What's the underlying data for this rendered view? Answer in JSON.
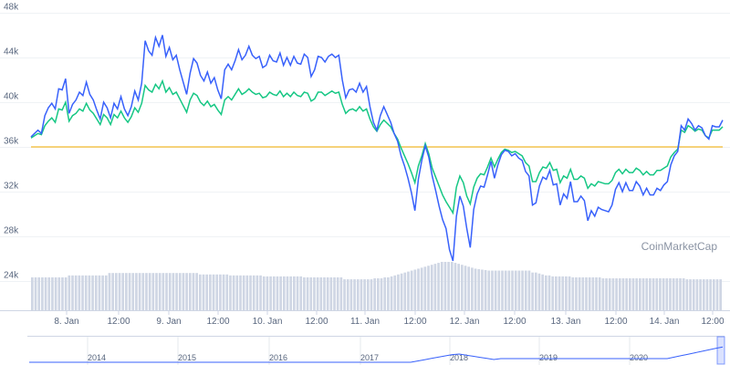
{
  "watermark": "CoinMarketCap",
  "colors": {
    "price": "#3861fb",
    "market_cap": "#16c784",
    "reference": "#f3ba2f",
    "volume": "#cfd6e4",
    "grid": "#eff2f5",
    "navigator": "#3861fb"
  },
  "chart_data": {
    "type": "line",
    "y_ticks": [
      "24k",
      "28k",
      "32k",
      "36k",
      "40k",
      "44k",
      "48k"
    ],
    "y_tick_values": [
      24000,
      28000,
      32000,
      36000,
      40000,
      44000,
      48000
    ],
    "ylim": [
      20000,
      48000
    ],
    "x_tick_labels": [
      "8. Jan",
      "12:00",
      "9. Jan",
      "12:00",
      "10. Jan",
      "12:00",
      "11. Jan",
      "12:00",
      "12. Jan",
      "12:00",
      "13. Jan",
      "12:00",
      "14. Jan",
      "12:00"
    ],
    "reference_line": {
      "value": 36000
    },
    "series": [
      {
        "values": [
          36900,
          37200,
          37500,
          37200,
          38800,
          39500,
          39900,
          39400,
          41200,
          41100,
          42100,
          39000,
          39800,
          40200,
          40900,
          40600,
          41800,
          40700,
          40200,
          39300,
          38500,
          40000,
          39500,
          38600,
          39900,
          39400,
          40500,
          39400,
          38800,
          39600,
          41000,
          40200,
          41700,
          45500,
          44600,
          44200,
          45800,
          45000,
          46000,
          44100,
          44900,
          43800,
          44200,
          42900,
          41800,
          40700,
          42600,
          43900,
          43500,
          42400,
          41900,
          42700,
          41700,
          42200,
          41100,
          40300,
          42900,
          43400,
          42900,
          43700,
          44700,
          43800,
          44200,
          45000,
          44200,
          43900,
          44100,
          43100,
          43300,
          44200,
          43700,
          43600,
          44400,
          43300,
          44000,
          43300,
          44100,
          43500,
          43400,
          44300,
          44000,
          42300,
          42900,
          44100,
          44000,
          43600,
          44100,
          44300,
          44000,
          44200,
          42000,
          40400,
          41100,
          41200,
          40900,
          41700,
          40900,
          41400,
          39600,
          38200,
          37500,
          38800,
          39600,
          38900,
          38200,
          37200,
          36500,
          35200,
          34300,
          33200,
          31900,
          30300,
          33100,
          34800,
          36100,
          35100,
          33400,
          32100,
          30700,
          29500,
          28700,
          26800,
          25800,
          29800,
          31600,
          30700,
          28700,
          27000,
          30400,
          31800,
          32500,
          32400,
          33500,
          34700,
          33200,
          34400,
          35300,
          35700,
          35600,
          35200,
          35400,
          35000,
          34800,
          33800,
          33400,
          30800,
          31000,
          32500,
          33300,
          33100,
          33900,
          32600,
          32700,
          30800,
          31800,
          31400,
          32900,
          31100,
          31100,
          31600,
          31200,
          29400,
          30300,
          29800,
          30600,
          30400,
          30300,
          30200,
          30800,
          32200,
          32800,
          32000,
          32800,
          32100,
          32100,
          32900,
          32500,
          31700,
          32300,
          31700,
          31700,
          32300,
          32100,
          32600,
          32900,
          34400,
          35200,
          35600,
          37900,
          37500,
          38500,
          38100,
          37500,
          37900,
          37700,
          37000,
          36700,
          37900,
          37800,
          37800,
          38400
        ],
        "color_key": "price"
      },
      {
        "values": [
          36800,
          37000,
          37200,
          37100,
          37900,
          38300,
          38600,
          38200,
          39400,
          39300,
          40000,
          38300,
          38800,
          39000,
          39400,
          39200,
          39900,
          39300,
          39000,
          38500,
          38000,
          38900,
          38600,
          38000,
          38900,
          38600,
          39200,
          38600,
          38200,
          38700,
          39500,
          39100,
          39900,
          41500,
          41100,
          40900,
          41600,
          41200,
          41900,
          40900,
          41300,
          40700,
          40900,
          40300,
          39700,
          39100,
          40200,
          40800,
          40600,
          40000,
          39700,
          40100,
          39600,
          39800,
          39300,
          38900,
          40200,
          40500,
          40200,
          40700,
          41200,
          40700,
          40900,
          41200,
          40900,
          40700,
          40800,
          40400,
          40500,
          40900,
          40700,
          40600,
          41000,
          40500,
          40800,
          40500,
          40900,
          40600,
          40500,
          40900,
          40800,
          40100,
          40300,
          40900,
          40900,
          40600,
          40800,
          41000,
          40800,
          40900,
          39800,
          39000,
          39300,
          39400,
          39200,
          39600,
          39200,
          39400,
          38500,
          37800,
          37400,
          38000,
          38400,
          38100,
          37800,
          37200,
          36700,
          35900,
          35200,
          34500,
          33700,
          32800,
          34300,
          35200,
          36300,
          35400,
          34100,
          33300,
          32500,
          31700,
          31100,
          30600,
          30100,
          32400,
          33400,
          32800,
          31600,
          30900,
          32400,
          33200,
          33600,
          33500,
          34200,
          35000,
          34200,
          34900,
          35500,
          35800,
          35700,
          35500,
          35600,
          35400,
          35200,
          34600,
          34300,
          32900,
          32900,
          33700,
          34200,
          34100,
          34600,
          33900,
          34000,
          32800,
          33400,
          33200,
          34000,
          33100,
          33100,
          33400,
          33200,
          32300,
          32700,
          32500,
          32900,
          32800,
          32700,
          32700,
          33000,
          33700,
          34000,
          33600,
          34000,
          33700,
          33700,
          34100,
          33900,
          33500,
          33800,
          33500,
          33500,
          33900,
          33900,
          34100,
          34300,
          35100,
          35500,
          35800,
          37500,
          37300,
          37900,
          37700,
          37400,
          37600,
          37500,
          37000,
          36800,
          37500,
          37500,
          37500,
          37800
        ],
        "color_key": "market_cap"
      }
    ],
    "volume_bars": [
      0.68,
      0.68,
      0.68,
      0.68,
      0.68,
      0.68,
      0.68,
      0.68,
      0.68,
      0.68,
      0.68,
      0.72,
      0.72,
      0.72,
      0.72,
      0.72,
      0.72,
      0.72,
      0.72,
      0.72,
      0.72,
      0.72,
      0.72,
      0.77,
      0.77,
      0.77,
      0.77,
      0.77,
      0.77,
      0.77,
      0.77,
      0.77,
      0.77,
      0.77,
      0.77,
      0.77,
      0.77,
      0.77,
      0.77,
      0.77,
      0.77,
      0.77,
      0.77,
      0.77,
      0.77,
      0.77,
      0.77,
      0.77,
      0.77,
      0.77,
      0.74,
      0.74,
      0.74,
      0.74,
      0.74,
      0.74,
      0.74,
      0.74,
      0.74,
      0.72,
      0.72,
      0.72,
      0.72,
      0.72,
      0.72,
      0.72,
      0.72,
      0.72,
      0.72,
      0.7,
      0.7,
      0.7,
      0.7,
      0.7,
      0.7,
      0.7,
      0.7,
      0.7,
      0.7,
      0.7,
      0.7,
      0.68,
      0.68,
      0.68,
      0.68,
      0.68,
      0.68,
      0.68,
      0.68,
      0.68,
      0.68,
      0.68,
      0.68,
      0.64,
      0.64,
      0.64,
      0.64,
      0.64,
      0.64,
      0.64,
      0.64,
      0.64,
      0.66,
      0.66,
      0.66,
      0.68,
      0.68,
      0.7,
      0.72,
      0.74,
      0.76,
      0.78,
      0.8,
      0.82,
      0.84,
      0.86,
      0.88,
      0.9,
      0.92,
      0.94,
      0.96,
      0.98,
      1.0,
      1.0,
      1.0,
      1.0,
      0.98,
      0.96,
      0.94,
      0.92,
      0.9,
      0.88,
      0.86,
      0.85,
      0.84,
      0.83,
      0.82,
      0.82,
      0.82,
      0.82,
      0.82,
      0.82,
      0.82,
      0.82,
      0.82,
      0.82,
      0.82,
      0.82,
      0.82,
      0.78,
      0.78,
      0.76,
      0.74,
      0.72,
      0.72,
      0.7,
      0.7,
      0.7,
      0.7,
      0.7,
      0.7,
      0.68,
      0.68,
      0.68,
      0.68,
      0.68,
      0.68,
      0.68,
      0.68,
      0.68,
      0.66,
      0.66,
      0.66,
      0.66,
      0.66,
      0.66,
      0.66,
      0.66,
      0.66,
      0.66,
      0.66,
      0.66,
      0.66,
      0.66,
      0.66,
      0.66,
      0.66,
      0.66,
      0.66,
      0.66,
      0.66,
      0.66,
      0.66,
      0.66,
      0.66,
      0.64,
      0.64,
      0.64,
      0.64,
      0.64,
      0.64,
      0.64,
      0.64,
      0.64,
      0.64,
      0.64
    ],
    "navigator": {
      "labels": [
        "2014",
        "2015",
        "2016",
        "2017",
        "2018",
        "2019",
        "2020"
      ]
    }
  }
}
